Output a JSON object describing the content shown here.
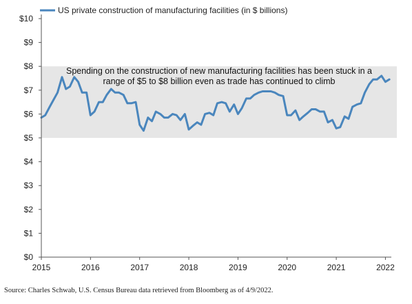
{
  "chart_data": {
    "type": "line",
    "legend_label": "US private construction of manufacturing facilities (in $ billions)",
    "legend_position": "top-left",
    "grid": false,
    "colors": {
      "series": "#4a86bd",
      "band": "#e6e6e6",
      "axis": "#555555"
    },
    "x_axis": {
      "range": [
        2015,
        2022.12
      ],
      "ticks": [
        2015,
        2016,
        2017,
        2018,
        2019,
        2020,
        2021,
        2022
      ],
      "tick_labels": [
        "2015",
        "2016",
        "2017",
        "2018",
        "2019",
        "2020",
        "2021",
        "2022"
      ]
    },
    "y_axis": {
      "range": [
        0,
        10
      ],
      "ticks": [
        0,
        1,
        2,
        3,
        4,
        5,
        6,
        7,
        8,
        9,
        10
      ],
      "tick_labels": [
        "$0",
        "$1",
        "$2",
        "$3",
        "$4",
        "$5",
        "$6",
        "$7",
        "$8",
        "$9",
        "$10"
      ]
    },
    "highlight_band": {
      "y_from": 5,
      "y_to": 8
    },
    "annotation_lines": [
      "Spending on the construction of new manufacturing facilities has been stuck in a",
      "range of $5 to $8 billion even as trade has continued to climb"
    ],
    "series": [
      {
        "values": [
          [
            2015.0,
            5.85
          ],
          [
            2015.08,
            5.95
          ],
          [
            2015.17,
            6.3
          ],
          [
            2015.25,
            6.6
          ],
          [
            2015.33,
            6.9
          ],
          [
            2015.42,
            7.55
          ],
          [
            2015.5,
            7.05
          ],
          [
            2015.58,
            7.15
          ],
          [
            2015.67,
            7.55
          ],
          [
            2015.75,
            7.35
          ],
          [
            2015.83,
            6.9
          ],
          [
            2015.92,
            6.9
          ],
          [
            2016.0,
            5.95
          ],
          [
            2016.08,
            6.1
          ],
          [
            2016.17,
            6.5
          ],
          [
            2016.25,
            6.5
          ],
          [
            2016.33,
            6.8
          ],
          [
            2016.42,
            7.05
          ],
          [
            2016.5,
            6.9
          ],
          [
            2016.58,
            6.9
          ],
          [
            2016.67,
            6.8
          ],
          [
            2016.75,
            6.45
          ],
          [
            2016.83,
            6.45
          ],
          [
            2016.92,
            6.5
          ],
          [
            2017.0,
            5.55
          ],
          [
            2017.08,
            5.3
          ],
          [
            2017.17,
            5.85
          ],
          [
            2017.25,
            5.7
          ],
          [
            2017.33,
            6.1
          ],
          [
            2017.42,
            6.0
          ],
          [
            2017.5,
            5.85
          ],
          [
            2017.58,
            5.85
          ],
          [
            2017.67,
            6.0
          ],
          [
            2017.75,
            5.95
          ],
          [
            2017.83,
            5.75
          ],
          [
            2017.92,
            6.0
          ],
          [
            2018.0,
            5.35
          ],
          [
            2018.08,
            5.5
          ],
          [
            2018.17,
            5.65
          ],
          [
            2018.25,
            5.55
          ],
          [
            2018.33,
            6.0
          ],
          [
            2018.42,
            6.05
          ],
          [
            2018.5,
            5.95
          ],
          [
            2018.58,
            6.45
          ],
          [
            2018.67,
            6.5
          ],
          [
            2018.75,
            6.45
          ],
          [
            2018.83,
            6.1
          ],
          [
            2018.92,
            6.4
          ],
          [
            2019.0,
            6.0
          ],
          [
            2019.08,
            6.25
          ],
          [
            2019.17,
            6.65
          ],
          [
            2019.25,
            6.65
          ],
          [
            2019.33,
            6.8
          ],
          [
            2019.42,
            6.9
          ],
          [
            2019.5,
            6.95
          ],
          [
            2019.58,
            6.95
          ],
          [
            2019.67,
            6.95
          ],
          [
            2019.75,
            6.9
          ],
          [
            2019.83,
            6.8
          ],
          [
            2019.92,
            6.75
          ],
          [
            2020.0,
            5.95
          ],
          [
            2020.08,
            5.95
          ],
          [
            2020.17,
            6.15
          ],
          [
            2020.25,
            5.75
          ],
          [
            2020.33,
            5.9
          ],
          [
            2020.42,
            6.05
          ],
          [
            2020.5,
            6.2
          ],
          [
            2020.58,
            6.2
          ],
          [
            2020.67,
            6.1
          ],
          [
            2020.75,
            6.1
          ],
          [
            2020.83,
            5.65
          ],
          [
            2020.92,
            5.75
          ],
          [
            2021.0,
            5.4
          ],
          [
            2021.08,
            5.45
          ],
          [
            2021.17,
            5.9
          ],
          [
            2021.25,
            5.8
          ],
          [
            2021.33,
            6.3
          ],
          [
            2021.42,
            6.4
          ],
          [
            2021.5,
            6.45
          ],
          [
            2021.58,
            6.9
          ],
          [
            2021.67,
            7.25
          ],
          [
            2021.75,
            7.45
          ],
          [
            2021.83,
            7.45
          ],
          [
            2021.92,
            7.6
          ],
          [
            2022.0,
            7.35
          ],
          [
            2022.08,
            7.45
          ]
        ]
      }
    ]
  },
  "source_text": "Source: Charles Schwab, U.S. Census Bureau data retrieved from Bloomberg as of 4/9/2022."
}
